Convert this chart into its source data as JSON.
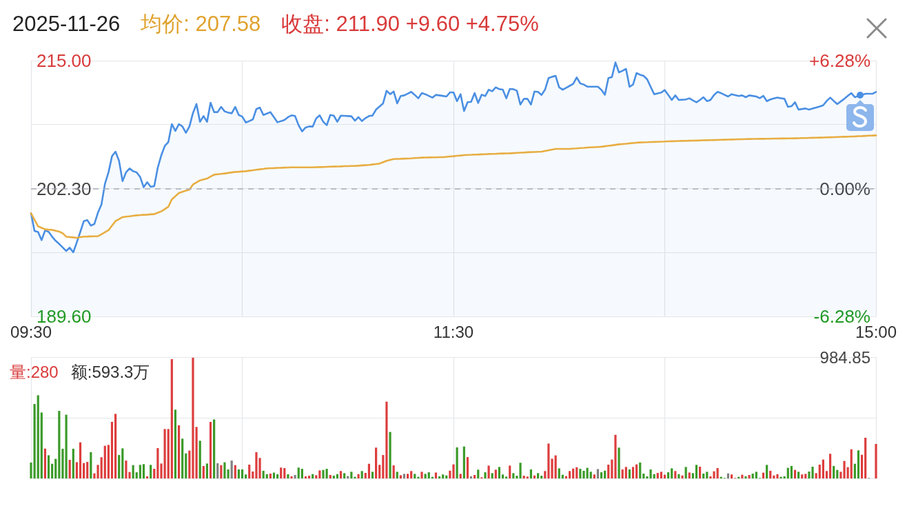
{
  "chart_data": [
    {
      "type": "line",
      "title": "2025-11-26",
      "annotations": [
        "均价: 207.58",
        "收盘: 211.90 +9.60 +4.75%"
      ],
      "categories": [
        "09:30",
        null,
        null,
        null,
        null,
        null,
        null,
        null,
        null,
        null,
        null,
        null,
        null,
        null,
        null,
        null,
        null,
        null,
        null,
        null,
        null,
        null,
        null,
        null,
        null,
        null,
        null,
        null,
        null,
        null,
        null,
        null,
        null,
        null,
        null,
        null,
        null,
        null,
        null,
        null,
        null,
        null,
        null,
        null,
        null,
        null,
        null,
        null,
        null,
        null,
        null,
        null,
        null,
        null,
        null,
        null,
        null,
        null,
        null,
        null,
        null,
        null,
        null,
        null,
        null,
        null,
        null,
        null,
        null,
        null,
        null,
        null,
        null,
        null,
        null,
        null,
        null,
        null,
        null,
        null,
        null,
        null,
        null,
        null,
        null,
        null,
        null,
        null,
        null,
        null,
        null,
        null,
        null,
        null,
        null,
        null,
        null,
        null,
        null,
        null,
        null,
        null,
        null,
        null,
        null,
        null,
        null,
        null,
        null,
        null,
        null,
        null,
        null,
        null,
        null,
        null,
        null,
        null,
        null,
        null,
        "11:30",
        null,
        null,
        null,
        null,
        null,
        null,
        null,
        null,
        null,
        null,
        null,
        null,
        null,
        null,
        null,
        null,
        null,
        null,
        null,
        null,
        null,
        null,
        null,
        null,
        null,
        null,
        null,
        null,
        null,
        null,
        null,
        null,
        null,
        null,
        null,
        null,
        null,
        null,
        null,
        null,
        null,
        null,
        null,
        null,
        null,
        null,
        null,
        null,
        null,
        null,
        null,
        null,
        null,
        null,
        null,
        null,
        null,
        null,
        null,
        null,
        null,
        null,
        null,
        null,
        null,
        null,
        null,
        null,
        null,
        null,
        null,
        null,
        null,
        null,
        null,
        null,
        null,
        null,
        null,
        null,
        null,
        null,
        null,
        null,
        null,
        null,
        null,
        null,
        null,
        null,
        null,
        null,
        null,
        null,
        null,
        null,
        null,
        null,
        null,
        null,
        null,
        null,
        null,
        null,
        null,
        null,
        null,
        null,
        null,
        null,
        null,
        null,
        null,
        null,
        null,
        null,
        null,
        null,
        null,
        "15:00"
      ],
      "ylim": [
        189.6,
        215
      ],
      "yticks": [
        {
          "value": 189.6,
          "label": "189.60"
        },
        {
          "value": 195.95,
          "label": null
        },
        {
          "value": 202.3,
          "label": "202.30"
        },
        {
          "value": 208.65,
          "label": null
        },
        {
          "value": 215,
          "label": "215.00"
        }
      ],
      "y2lim": [
        -6.28,
        6.28
      ],
      "y2ticks": [
        {
          "value": -6.28,
          "label": "-6.28%"
        },
        {
          "value": 0,
          "label": "0.00%"
        },
        {
          "value": 6.28,
          "label": "+6.28%"
        }
      ],
      "series": [
        {
          "type": "area",
          "color": "#4a8fe3",
          "values": [
            199.85,
            198.09,
            197.98,
            197.18,
            198.14,
            198.0,
            197.52,
            197.11,
            196.8,
            196.45,
            196.1,
            196.43,
            195.97,
            196.95,
            198.0,
            199.07,
            199.16,
            198.62,
            198.78,
            199.9,
            200.71,
            202.77,
            203.9,
            205.51,
            205.96,
            205.05,
            203.04,
            203.91,
            204.3,
            204.02,
            203.91,
            203.45,
            202.43,
            202.93,
            202.47,
            202.54,
            204.37,
            205.6,
            206.53,
            206.92,
            208.7,
            208.02,
            208.7,
            208.47,
            207.83,
            208.47,
            209.8,
            210.69,
            208.93,
            209.5,
            208.93,
            210.82,
            209.89,
            209.89,
            210.41,
            209.96,
            209.85,
            209.77,
            210.41,
            209.61,
            209.45,
            208.86,
            209.0,
            209.16,
            210.19,
            210.34,
            209.61,
            209.75,
            209.89,
            209.39,
            208.88,
            209.0,
            209.11,
            209.39,
            209.57,
            209.5,
            208.59,
            207.97,
            208.36,
            208.47,
            208.45,
            209.27,
            209.57,
            208.93,
            208.59,
            209.61,
            209.54,
            208.93,
            209.54,
            209.52,
            209.5,
            209.48,
            209.04,
            209.39,
            209.0,
            209.3,
            209.5,
            209.55,
            210.14,
            210.45,
            210.76,
            212.01,
            211.67,
            211.94,
            210.76,
            211.49,
            211.55,
            211.72,
            211.9,
            211.6,
            211.26,
            211.78,
            211.67,
            211.5,
            211.33,
            211.6,
            211.55,
            211.5,
            211.44,
            211.85,
            211.85,
            210.98,
            211.67,
            210.0,
            210.87,
            210.91,
            211.78,
            210.8,
            211.62,
            211.49,
            212.12,
            211.96,
            212.35,
            212.17,
            212.12,
            211.26,
            212.19,
            212.17,
            212.01,
            210.64,
            211.21,
            211.21,
            210.64,
            211.94,
            211.9,
            211.6,
            212.12,
            213.27,
            213.4,
            213.49,
            212.35,
            212.12,
            212.31,
            212.5,
            212.7,
            213.33,
            212.74,
            212.63,
            212.42,
            212.42,
            212.42,
            212.42,
            212.1,
            211.62,
            213.27,
            213.38,
            214.82,
            213.84,
            214.0,
            214.18,
            212.4,
            212.63,
            213.77,
            213.6,
            213.49,
            213.15,
            212.4,
            211.67,
            211.75,
            211.83,
            212.08,
            211.6,
            211.1,
            211.55,
            211.1,
            211.12,
            211.15,
            211.26,
            211.05,
            210.87,
            211.1,
            211.37,
            210.98,
            211.1,
            211.6,
            211.9,
            211.78,
            211.6,
            211.44,
            211.67,
            211.58,
            211.49,
            211.55,
            211.37,
            211.55,
            211.5,
            211.44,
            211.28,
            211.51,
            210.98,
            211.15,
            211.25,
            211.33,
            211.27,
            211.21,
            210.41,
            210.48,
            210.87,
            210.14,
            210.2,
            210.25,
            210.14,
            210.25,
            210.34,
            210.45,
            210.57,
            211.0,
            211.33,
            211.0,
            210.69,
            210.95,
            211.21,
            211.5,
            211.78,
            211.37,
            211.5,
            211.6,
            211.71,
            211.71,
            211.71,
            211.9
          ]
        },
        {
          "color": "#e8ad42",
          "values": [
            199.85,
            199.2,
            198.55,
            198.4,
            198.25,
            198.22,
            198.2,
            198.11,
            198.02,
            197.86,
            197.52,
            197.48,
            197.45,
            197.41,
            197.47,
            197.52,
            197.53,
            197.55,
            197.56,
            197.57,
            197.75,
            197.96,
            198.16,
            198.62,
            199.07,
            199.27,
            199.46,
            199.51,
            199.55,
            199.6,
            199.64,
            199.66,
            199.69,
            199.71,
            199.74,
            199.76,
            199.9,
            200.03,
            200.26,
            200.49,
            201.22,
            201.54,
            201.86,
            201.97,
            202.09,
            202.2,
            202.7,
            202.91,
            203.11,
            203.2,
            203.29,
            203.49,
            203.68,
            203.72,
            203.76,
            203.8,
            203.85,
            203.9,
            203.95,
            203.97,
            204.0,
            204.02,
            204.07,
            204.11,
            204.16,
            204.21,
            204.25,
            204.3,
            204.32,
            204.33,
            204.35,
            204.36,
            204.38,
            204.39,
            204.41,
            204.41,
            204.41,
            204.41,
            204.41,
            204.41,
            204.41,
            204.42,
            204.43,
            204.44,
            204.46,
            204.47,
            204.48,
            204.49,
            204.5,
            204.52,
            204.53,
            204.54,
            204.55,
            204.57,
            204.6,
            204.62,
            204.64,
            204.69,
            204.73,
            204.78,
            204.92,
            205.05,
            205.14,
            205.23,
            205.24,
            205.25,
            205.27,
            205.28,
            205.3,
            205.33,
            205.35,
            205.37,
            205.38,
            205.39,
            205.4,
            205.4,
            205.41,
            205.42,
            205.45,
            205.48,
            205.51,
            205.55,
            205.58,
            205.62,
            205.64,
            205.65,
            205.67,
            205.68,
            205.7,
            205.71,
            205.73,
            205.74,
            205.75,
            205.77,
            205.78,
            205.79,
            205.8,
            205.82,
            205.84,
            205.86,
            205.88,
            205.9,
            205.92,
            205.93,
            205.95,
            205.96,
            206.03,
            206.1,
            206.17,
            206.24,
            206.24,
            206.24,
            206.24,
            206.24,
            206.27,
            206.29,
            206.32,
            206.34,
            206.37,
            206.39,
            206.41,
            206.43,
            206.45,
            206.5,
            206.55,
            206.59,
            206.64,
            206.69,
            206.72,
            206.75,
            206.79,
            206.82,
            206.85,
            206.88,
            206.89,
            206.9,
            206.92,
            206.93,
            206.94,
            206.96,
            206.97,
            206.99,
            207.0,
            207.01,
            207.02,
            207.03,
            207.04,
            207.05,
            207.06,
            207.07,
            207.08,
            207.09,
            207.1,
            207.11,
            207.12,
            207.13,
            207.14,
            207.15,
            207.16,
            207.17,
            207.18,
            207.19,
            207.2,
            207.21,
            207.22,
            207.23,
            207.23,
            207.24,
            207.24,
            207.25,
            207.25,
            207.26,
            207.26,
            207.27,
            207.27,
            207.28,
            207.28,
            207.29,
            207.3,
            207.31,
            207.32,
            207.33,
            207.34,
            207.35,
            207.36,
            207.37,
            207.38,
            207.39,
            207.4,
            207.42,
            207.43,
            207.44,
            207.45,
            207.47,
            207.48,
            207.5,
            207.51,
            207.53,
            207.55,
            207.56,
            207.58
          ]
        }
      ],
      "ref_lines": [
        {
          "axis": "y",
          "value": 202.3,
          "color": "#a9adb5",
          "line_style": "dashed"
        }
      ],
      "grid": true,
      "marker": "none"
    },
    {
      "type": "bar",
      "annotations": [
        "量:280",
        "额:593.3万"
      ],
      "categories": [
        null,
        null,
        null,
        null,
        null,
        null,
        null,
        null,
        null,
        null,
        null,
        null,
        null,
        null,
        null,
        null,
        null,
        null,
        null,
        null,
        null,
        null,
        null,
        null,
        null,
        null,
        null,
        null,
        null,
        null,
        null,
        null,
        null,
        null,
        null,
        null,
        null,
        null,
        null,
        null,
        null,
        null,
        null,
        null,
        null,
        null,
        null,
        null,
        null,
        null,
        null,
        null,
        null,
        null,
        null,
        null,
        null,
        null,
        null,
        null,
        null,
        null,
        null,
        null,
        null,
        null,
        null,
        null,
        null,
        null,
        null,
        null,
        null,
        null,
        null,
        null,
        null,
        null,
        null,
        null,
        null,
        null,
        null,
        null,
        null,
        null,
        null,
        null,
        null,
        null,
        null,
        null,
        null,
        null,
        null,
        null,
        null,
        null,
        null,
        null,
        null,
        null,
        null,
        null,
        null,
        null,
        null,
        null,
        null,
        null,
        null,
        null,
        null,
        null,
        null,
        null,
        null,
        null,
        null,
        null,
        null,
        null,
        null,
        null,
        null,
        null,
        null,
        null,
        null,
        null,
        null,
        null,
        null,
        null,
        null,
        null,
        null,
        null,
        null,
        null,
        null,
        null,
        null,
        null,
        null,
        null,
        null,
        null,
        null,
        null,
        null,
        null,
        null,
        null,
        null,
        null,
        null,
        null,
        null,
        null,
        null,
        null,
        null,
        null,
        null,
        null,
        null,
        null,
        null,
        null,
        null,
        null,
        null,
        null,
        null,
        null,
        null,
        null,
        null,
        null,
        null,
        null,
        null,
        null,
        null,
        null,
        null,
        null,
        null,
        null,
        null,
        null,
        null,
        null,
        null,
        null,
        null,
        null,
        null,
        null,
        null,
        null,
        null,
        null,
        null,
        null,
        null,
        null,
        null,
        null,
        null,
        null,
        null,
        null,
        null,
        null,
        null,
        null,
        null,
        null,
        null,
        null,
        null,
        null,
        null,
        null,
        null,
        null,
        null,
        null,
        null,
        null,
        null,
        null,
        null,
        null,
        null,
        null,
        null,
        null,
        null
      ],
      "values": [
        129,
        604,
        675,
        535,
        242,
        188,
        119,
        159,
        548,
        241,
        517,
        151,
        241,
        132,
        293,
        125,
        134,
        213,
        41,
        110,
        172,
        265,
        272,
        459,
        524,
        190,
        244,
        145,
        52,
        108,
        50,
        110,
        116,
        17,
        110,
        78,
        246,
        121,
        401,
        401,
        968,
        558,
        431,
        323,
        203,
        226,
        980,
        418,
        306,
        101,
        121,
        459,
        479,
        123,
        108,
        131,
        73,
        145,
        108,
        73,
        73,
        32,
        112,
        56,
        213,
        166,
        62,
        35,
        39,
        47,
        34,
        88,
        84,
        34,
        17,
        28,
        88,
        78,
        17,
        22,
        35,
        26,
        65,
        69,
        78,
        28,
        22,
        35,
        60,
        43,
        19,
        54,
        13,
        35,
        60,
        45,
        119,
        54,
        250,
        110,
        190,
        623,
        377,
        106,
        54,
        26,
        37,
        37,
        60,
        37,
        13,
        54,
        37,
        50,
        13,
        48,
        17,
        32,
        24,
        63,
        114,
        252,
        37,
        259,
        173,
        17,
        28,
        71,
        9,
        50,
        104,
        43,
        71,
        93,
        32,
        15,
        104,
        43,
        22,
        127,
        22,
        15,
        73,
        24,
        43,
        22,
        60,
        283,
        160,
        187,
        82,
        30,
        19,
        60,
        80,
        91,
        78,
        62,
        86,
        54,
        32,
        76,
        50,
        63,
        112,
        153,
        354,
        250,
        73,
        93,
        73,
        93,
        114,
        129,
        39,
        17,
        73,
        35,
        45,
        54,
        30,
        50,
        82,
        60,
        35,
        24,
        93,
        48,
        43,
        110,
        95,
        39,
        54,
        17,
        58,
        84,
        13,
        4,
        41,
        32,
        4,
        13,
        30,
        17,
        28,
        39,
        54,
        4,
        47,
        110,
        62,
        24,
        34,
        13,
        17,
        86,
        101,
        69,
        54,
        32,
        37,
        56,
        95,
        43,
        112,
        153,
        60,
        200,
        101,
        69,
        54,
        142,
        91,
        237,
        119,
        228,
        192,
        330,
        4,
        null,
        280
      ],
      "colors": [
        "#3a9a28",
        "#3a9a28",
        "#3a9a28",
        "#3a9a28",
        "#dd3d3d",
        "#3a9a28",
        "#3a9a28",
        "#3a9a28",
        "#3a9a28",
        "#3a9a28",
        "#3a9a28",
        "#dd3d3d",
        "#3a9a28",
        "#dd3d3d",
        "#dd3d3d",
        "#dd3d3d",
        "#dd3d3d",
        "#3a9a28",
        "#dd3d3d",
        "#dd3d3d",
        "#dd3d3d",
        "#dd3d3d",
        "#dd3d3d",
        "#dd3d3d",
        "#dd3d3d",
        "#3a9a28",
        "#3a9a28",
        "#dd3d3d",
        "#dd3d3d",
        "#3a9a28",
        "#3a9a28",
        "#3a9a28",
        "#3a9a28",
        "#dd3d3d",
        "#3a9a28",
        "#dd3d3d",
        "#dd3d3d",
        "#dd3d3d",
        "#dd3d3d",
        "#dd3d3d",
        "#dd3d3d",
        "#3a9a28",
        "#dd3d3d",
        "#3a9a28",
        "#3a9a28",
        "#dd3d3d",
        "#dd3d3d",
        "#dd3d3d",
        "#3a9a28",
        "#dd3d3d",
        "#3a9a28",
        "#dd3d3d",
        "#3a9a28",
        "#808080",
        "#dd3d3d",
        "#3a9a28",
        "#3a9a28",
        "#808080",
        "#dd3d3d",
        "#3a9a28",
        "#3a9a28",
        "#3a9a28",
        "#dd3d3d",
        "#dd3d3d",
        "#dd3d3d",
        "#dd3d3d",
        "#3a9a28",
        "#3a9a28",
        "#dd3d3d",
        "#3a9a28",
        "#3a9a28",
        "#dd3d3d",
        "#dd3d3d",
        "#3a9a28",
        "#dd3d3d",
        "#808080",
        "#3a9a28",
        "#3a9a28",
        "#dd3d3d",
        "#dd3d3d",
        "#3a9a28",
        "#dd3d3d",
        "#dd3d3d",
        "#3a9a28",
        "#3a9a28",
        "#dd3d3d",
        "#3a9a28",
        "#3a9a28",
        "#dd3d3d",
        "#3a9a28",
        "#808080",
        "#3a9a28",
        "#3a9a28",
        "#dd3d3d",
        "#3a9a28",
        "#dd3d3d",
        "#dd3d3d",
        "#3a9a28",
        "#dd3d3d",
        "#dd3d3d",
        "#dd3d3d",
        "#dd3d3d",
        "#3a9a28",
        "#dd3d3d",
        "#3a9a28",
        "#dd3d3d",
        "#808080",
        "#dd3d3d",
        "#dd3d3d",
        "#3a9a28",
        "#3a9a28",
        "#dd3d3d",
        "#3a9a28",
        "#3a9a28",
        "#3a9a28",
        "#dd3d3d",
        "#3a9a28",
        "#3a9a28",
        "#3a9a28",
        "#dd3d3d",
        "#dd3d3d",
        "#3a9a28",
        "#dd3d3d",
        "#3a9a28",
        "#dd3d3d",
        "#808080",
        "#dd3d3d",
        "#3a9a28",
        "#dd3d3d",
        "#3a9a28",
        "#dd3d3d",
        "#3a9a28",
        "#dd3d3d",
        "#3a9a28",
        "#3a9a28",
        "#3a9a28",
        "#dd3d3d",
        "#3a9a28",
        "#3a9a28",
        "#3a9a28",
        "#dd3d3d",
        "#dd3d3d",
        "#3a9a28",
        "#dd3d3d",
        "#3a9a28",
        "#3a9a28",
        "#dd3d3d",
        "#dd3d3d",
        "#dd3d3d",
        "#dd3d3d",
        "#3a9a28",
        "#3a9a28",
        "#dd3d3d",
        "#dd3d3d",
        "#dd3d3d",
        "#dd3d3d",
        "#3a9a28",
        "#3a9a28",
        "#3a9a28",
        "#3a9a28",
        "#dd3d3d",
        "#808080",
        "#3a9a28",
        "#3a9a28",
        "#dd3d3d",
        "#dd3d3d",
        "#dd3d3d",
        "#3a9a28",
        "#dd3d3d",
        "#dd3d3d",
        "#3a9a28",
        "#dd3d3d",
        "#dd3d3d",
        "#3a9a28",
        "#3a9a28",
        "#3a9a28",
        "#3a9a28",
        "#3a9a28",
        "#dd3d3d",
        "#dd3d3d",
        "#dd3d3d",
        "#3a9a28",
        "#3a9a28",
        "#dd3d3d",
        "#3a9a28",
        "#dd3d3d",
        "#3a9a28",
        "#dd3d3d",
        "#3a9a28",
        "#3a9a28",
        "#dd3d3d",
        "#3a9a28",
        "#3a9a28",
        "#dd3d3d",
        "#dd3d3d",
        "#dd3d3d",
        "#3a9a28",
        "#3a9a28",
        "#808080",
        "#dd3d3d",
        "#dd3d3d",
        "#3a9a28",
        "#dd3d3d",
        "#3a9a28",
        "#dd3d3d",
        "#3a9a28",
        "#3a9a28",
        "#3a9a28",
        "#dd3d3d",
        "#3a9a28",
        "#dd3d3d",
        "#dd3d3d",
        "#dd3d3d",
        "#3a9a28",
        "#3a9a28",
        "#3a9a28",
        "#3a9a28",
        "#dd3d3d",
        "#3a9a28",
        "#dd3d3d",
        "#dd3d3d",
        "#3a9a28",
        "#3a9a28",
        "#dd3d3d",
        "#dd3d3d",
        "#dd3d3d",
        "#dd3d3d",
        "#dd3d3d",
        "#3a9a28",
        "#3a9a28",
        "#dd3d3d",
        "#dd3d3d",
        "#dd3d3d",
        "#dd3d3d",
        "#3a9a28",
        "#3a9a28",
        "#dd3d3d",
        "#dd3d3d",
        "#808080",
        "#dd3d3d",
        "#dd3d3d"
      ],
      "ylim": [
        0,
        984.85
      ],
      "yticks": [
        {
          "value": 0,
          "label": null
        },
        {
          "value": 492.425,
          "label": null
        },
        984.85
      ],
      "grid": true
    }
  ]
}
